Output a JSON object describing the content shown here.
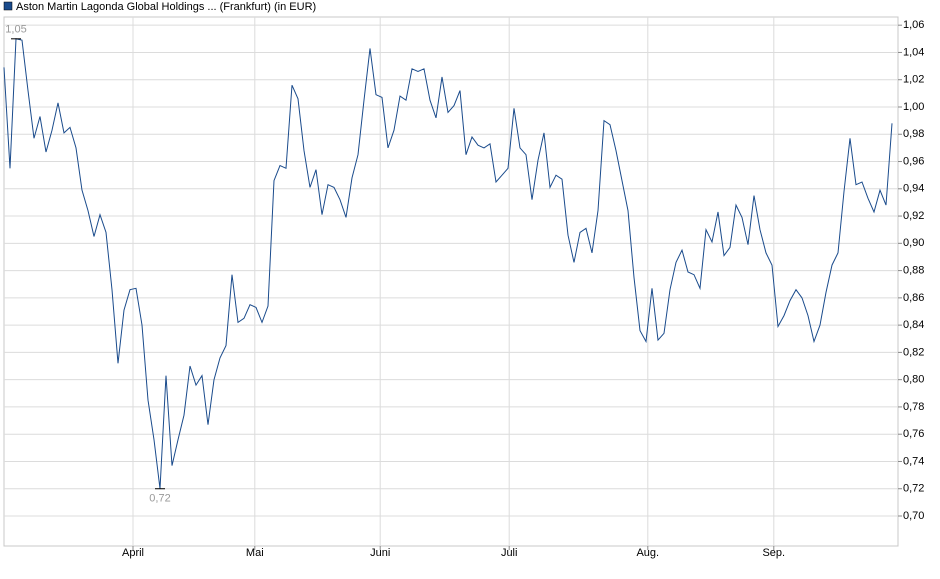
{
  "chart_data": {
    "type": "line",
    "title": "Aston Martin Lagonda Global Holdings ... (Frankfurt) (in EUR)",
    "color": "#1a4b8c",
    "grid": true,
    "values": [
      1.029,
      0.955,
      1.05,
      1.049,
      1.012,
      0.977,
      0.993,
      0.967,
      0.983,
      1.003,
      0.981,
      0.985,
      0.97,
      0.939,
      0.924,
      0.905,
      0.921,
      0.908,
      0.866,
      0.812,
      0.851,
      0.866,
      0.867,
      0.84,
      0.785,
      0.756,
      0.72,
      0.803,
      0.737,
      0.756,
      0.774,
      0.81,
      0.796,
      0.803,
      0.767,
      0.8,
      0.816,
      0.825,
      0.877,
      0.842,
      0.845,
      0.855,
      0.853,
      0.842,
      0.854,
      0.946,
      0.957,
      0.955,
      1.016,
      1.006,
      0.968,
      0.941,
      0.954,
      0.921,
      0.943,
      0.941,
      0.932,
      0.919,
      0.948,
      0.965,
      1.005,
      1.043,
      1.009,
      1.007,
      0.97,
      0.983,
      1.008,
      1.005,
      1.028,
      1.026,
      1.028,
      1.005,
      0.992,
      1.022,
      0.996,
      1.001,
      1.012,
      0.965,
      0.978,
      0.972,
      0.97,
      0.973,
      0.945,
      0.95,
      0.955,
      0.999,
      0.97,
      0.965,
      0.932,
      0.961,
      0.981,
      0.941,
      0.95,
      0.947,
      0.906,
      0.886,
      0.908,
      0.911,
      0.893,
      0.924,
      0.99,
      0.987,
      0.968,
      0.946,
      0.924,
      0.875,
      0.836,
      0.828,
      0.867,
      0.829,
      0.834,
      0.866,
      0.886,
      0.895,
      0.879,
      0.877,
      0.867,
      0.91,
      0.901,
      0.923,
      0.891,
      0.897,
      0.928,
      0.919,
      0.899,
      0.935,
      0.91,
      0.893,
      0.884,
      0.839,
      0.847,
      0.858,
      0.866,
      0.86,
      0.847,
      0.828,
      0.84,
      0.864,
      0.884,
      0.893,
      0.938,
      0.977,
      0.943,
      0.945,
      0.933,
      0.923,
      0.939,
      0.928,
      0.988
    ],
    "xlim": [
      0,
      149
    ],
    "xticks": [
      {
        "value": 21.5,
        "label": "April"
      },
      {
        "value": 41.8,
        "label": "Mai"
      },
      {
        "value": 62.7,
        "label": "Juni"
      },
      {
        "value": 84.2,
        "label": "Juli"
      },
      {
        "value": 107.3,
        "label": "Aug."
      },
      {
        "value": 128.3,
        "label": "Sep."
      }
    ],
    "ylim": [
      0.678,
      1.066
    ],
    "yticks": [
      {
        "value": 0.7,
        "label": "0,70"
      },
      {
        "value": 0.72,
        "label": "0,72"
      },
      {
        "value": 0.74,
        "label": "0,74"
      },
      {
        "value": 0.76,
        "label": "0,76"
      },
      {
        "value": 0.78,
        "label": "0,78"
      },
      {
        "value": 0.8,
        "label": "0,80"
      },
      {
        "value": 0.82,
        "label": "0,82"
      },
      {
        "value": 0.84,
        "label": "0,84"
      },
      {
        "value": 0.86,
        "label": "0,86"
      },
      {
        "value": 0.88,
        "label": "0,88"
      },
      {
        "value": 0.9,
        "label": "0,90"
      },
      {
        "value": 0.92,
        "label": "0,92"
      },
      {
        "value": 0.94,
        "label": "0,94"
      },
      {
        "value": 0.96,
        "label": "0,96"
      },
      {
        "value": 0.98,
        "label": "0,98"
      },
      {
        "value": 1.0,
        "label": "1,00"
      },
      {
        "value": 1.02,
        "label": "1,02"
      },
      {
        "value": 1.04,
        "label": "1,04"
      },
      {
        "value": 1.06,
        "label": "1,06"
      }
    ],
    "annotations": [
      {
        "value": 1.05,
        "label": "1,05"
      },
      {
        "value": 0.72,
        "label": "0,72"
      }
    ]
  }
}
